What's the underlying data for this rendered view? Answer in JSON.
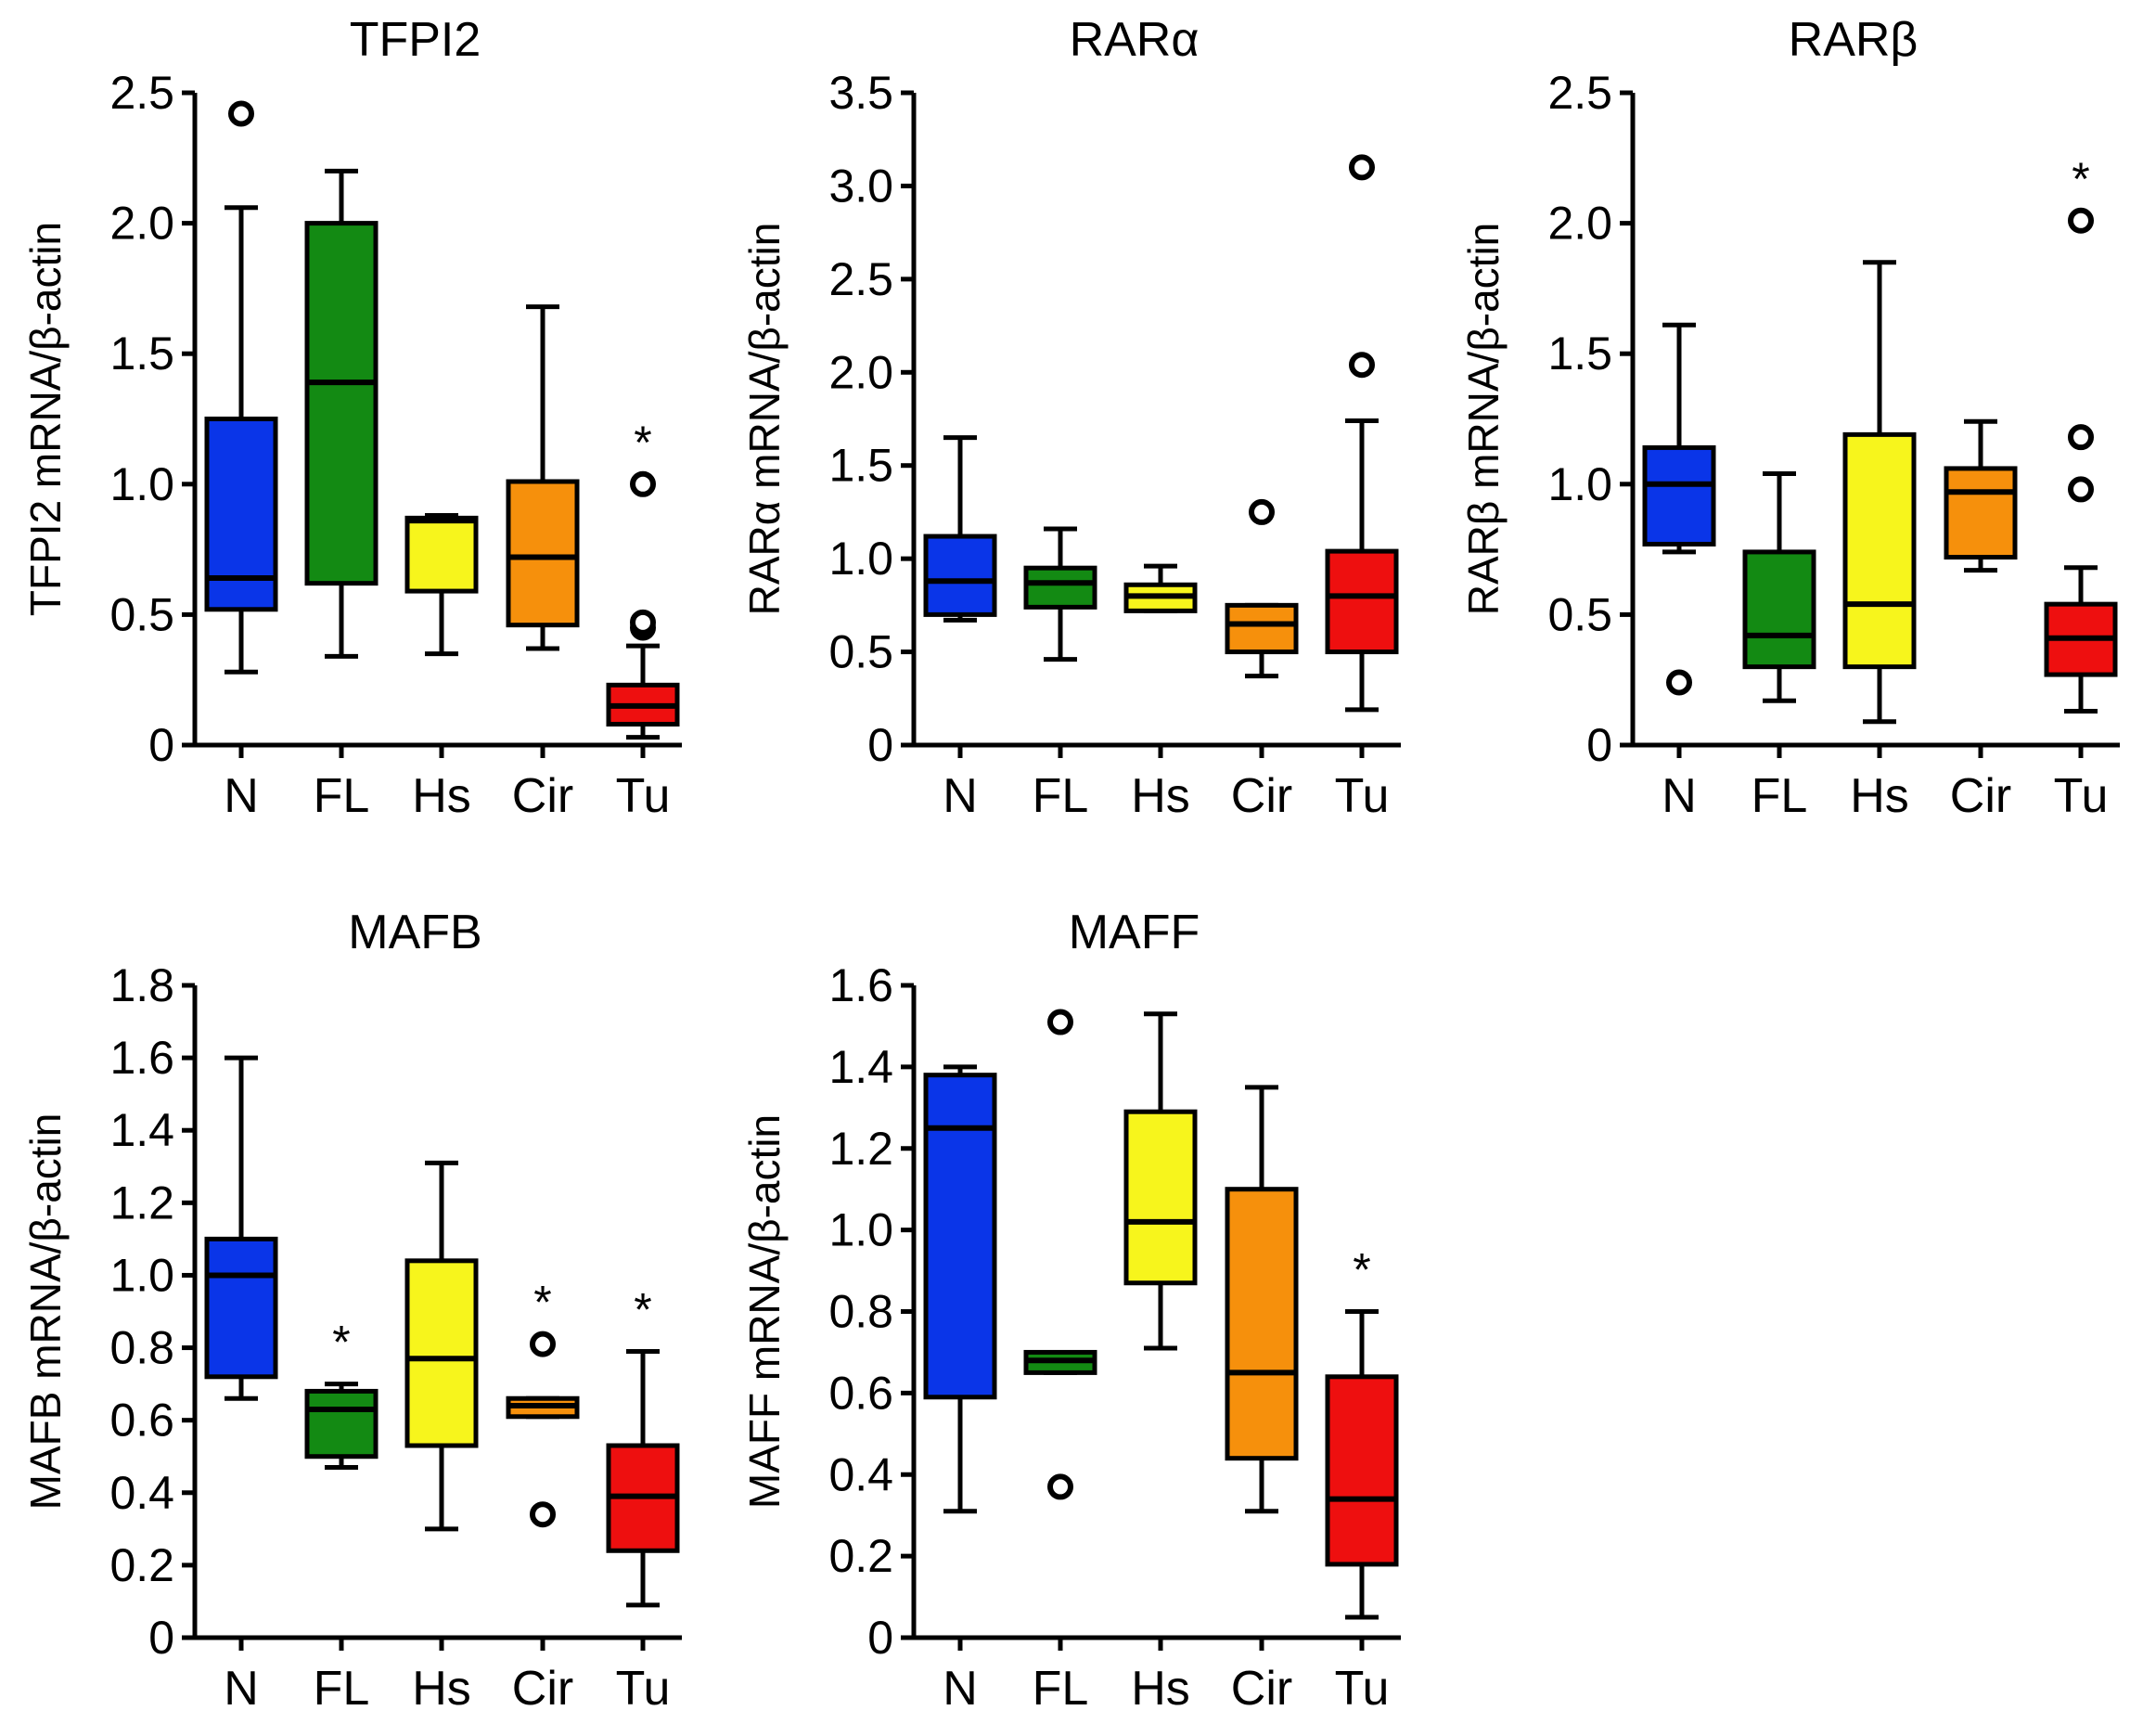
{
  "colors": {
    "N": "#0a35e8",
    "FL": "#138a13",
    "Hs": "#f7f51c",
    "Cir": "#f6900c",
    "Tu": "#ee0f0f",
    "stroke": "#000000"
  },
  "chart_data": [
    {
      "type": "box",
      "title": "TFPI2",
      "ylabel": "TFPI2 mRNA/β-actin",
      "ylim": [
        0,
        2.5
      ],
      "yticks": [
        "0",
        "0.5",
        "1.0",
        "1.5",
        "2.0",
        "2.5"
      ],
      "ytick_values": [
        0,
        0.5,
        1.0,
        1.5,
        2.0,
        2.5
      ],
      "categories": [
        "N",
        "FL",
        "Hs",
        "Cir",
        "Tu"
      ],
      "boxes": [
        {
          "category": "N",
          "whisker_low": 0.28,
          "q1": 0.52,
          "median": 0.64,
          "q3": 1.25,
          "whisker_high": 2.06,
          "outliers": [
            2.42
          ],
          "significant": false
        },
        {
          "category": "FL",
          "whisker_low": 0.34,
          "q1": 0.62,
          "median": 1.39,
          "q3": 2.0,
          "whisker_high": 2.2,
          "outliers": [],
          "significant": false
        },
        {
          "category": "Hs",
          "whisker_low": 0.35,
          "q1": 0.59,
          "median": 0.86,
          "q3": 0.87,
          "whisker_high": 0.88,
          "outliers": [],
          "significant": false
        },
        {
          "category": "Cir",
          "whisker_low": 0.37,
          "q1": 0.46,
          "median": 0.72,
          "q3": 1.01,
          "whisker_high": 1.68,
          "outliers": [],
          "significant": false
        },
        {
          "category": "Tu",
          "whisker_low": 0.03,
          "q1": 0.08,
          "median": 0.15,
          "q3": 0.23,
          "whisker_high": 0.38,
          "outliers": [
            0.45,
            0.47,
            1.0
          ],
          "significant": true
        }
      ]
    },
    {
      "type": "box",
      "title": "RARα",
      "ylabel": "RARα mRNA/β-actin",
      "ylim": [
        0,
        3.5
      ],
      "yticks": [
        "0",
        "0.5",
        "1.0",
        "1.5",
        "2.0",
        "2.5",
        "3.0",
        "3.5"
      ],
      "ytick_values": [
        0,
        0.5,
        1.0,
        1.5,
        2.0,
        2.5,
        3.0,
        3.5
      ],
      "categories": [
        "N",
        "FL",
        "Hs",
        "Cir",
        "Tu"
      ],
      "boxes": [
        {
          "category": "N",
          "whisker_low": 0.67,
          "q1": 0.7,
          "median": 0.88,
          "q3": 1.12,
          "whisker_high": 1.65,
          "outliers": [],
          "significant": false
        },
        {
          "category": "FL",
          "whisker_low": 0.46,
          "q1": 0.74,
          "median": 0.87,
          "q3": 0.95,
          "whisker_high": 1.16,
          "outliers": [],
          "significant": false
        },
        {
          "category": "Hs",
          "whisker_low": 0.72,
          "q1": 0.72,
          "median": 0.8,
          "q3": 0.86,
          "whisker_high": 0.96,
          "outliers": [],
          "significant": false
        },
        {
          "category": "Cir",
          "whisker_low": 0.37,
          "q1": 0.5,
          "median": 0.65,
          "q3": 0.75,
          "whisker_high": 0.75,
          "outliers": [
            1.25
          ],
          "significant": false
        },
        {
          "category": "Tu",
          "whisker_low": 0.19,
          "q1": 0.5,
          "median": 0.8,
          "q3": 1.04,
          "whisker_high": 1.74,
          "outliers": [
            2.04,
            3.1
          ],
          "significant": false
        }
      ]
    },
    {
      "type": "box",
      "title": "RARβ",
      "ylabel": "RARβ mRNA/β-actin",
      "ylim": [
        0,
        2.5
      ],
      "yticks": [
        "0",
        "0.5",
        "1.0",
        "1.5",
        "2.0",
        "2.5"
      ],
      "ytick_values": [
        0,
        0.5,
        1.0,
        1.5,
        2.0,
        2.5
      ],
      "categories": [
        "N",
        "FL",
        "Hs",
        "Cir",
        "Tu"
      ],
      "boxes": [
        {
          "category": "N",
          "whisker_low": 0.74,
          "q1": 0.77,
          "median": 1.0,
          "q3": 1.14,
          "whisker_high": 1.61,
          "outliers": [
            0.24
          ],
          "significant": false
        },
        {
          "category": "FL",
          "whisker_low": 0.17,
          "q1": 0.3,
          "median": 0.42,
          "q3": 0.74,
          "whisker_high": 1.04,
          "outliers": [],
          "significant": false
        },
        {
          "category": "Hs",
          "whisker_low": 0.09,
          "q1": 0.3,
          "median": 0.54,
          "q3": 1.19,
          "whisker_high": 1.85,
          "outliers": [],
          "significant": false
        },
        {
          "category": "Cir",
          "whisker_low": 0.67,
          "q1": 0.72,
          "median": 0.97,
          "q3": 1.06,
          "whisker_high": 1.24,
          "outliers": [],
          "significant": false
        },
        {
          "category": "Tu",
          "whisker_low": 0.13,
          "q1": 0.27,
          "median": 0.41,
          "q3": 0.54,
          "whisker_high": 0.68,
          "outliers": [
            0.98,
            1.18,
            2.01
          ],
          "significant": true
        }
      ]
    },
    {
      "type": "box",
      "title": "MAFB",
      "ylabel": "MAFB mRNA/β-actin",
      "ylim": [
        0,
        1.8
      ],
      "yticks": [
        "0",
        "0.2",
        "0.4",
        "0.6",
        "0.8",
        "1.0",
        "1.2",
        "1.4",
        "1.6",
        "1.8"
      ],
      "ytick_values": [
        0,
        0.2,
        0.4,
        0.6,
        0.8,
        1.0,
        1.2,
        1.4,
        1.6,
        1.8
      ],
      "categories": [
        "N",
        "FL",
        "Hs",
        "Cir",
        "Tu"
      ],
      "boxes": [
        {
          "category": "N",
          "whisker_low": 0.66,
          "q1": 0.72,
          "median": 1.0,
          "q3": 1.1,
          "whisker_high": 1.6,
          "outliers": [],
          "significant": false
        },
        {
          "category": "FL",
          "whisker_low": 0.47,
          "q1": 0.5,
          "median": 0.63,
          "q3": 0.68,
          "whisker_high": 0.7,
          "outliers": [],
          "significant": true
        },
        {
          "category": "Hs",
          "whisker_low": 0.3,
          "q1": 0.53,
          "median": 0.77,
          "q3": 1.04,
          "whisker_high": 1.31,
          "outliers": [],
          "significant": false
        },
        {
          "category": "Cir",
          "whisker_low": 0.61,
          "q1": 0.61,
          "median": 0.64,
          "q3": 0.66,
          "whisker_high": 0.66,
          "outliers": [
            0.34,
            0.81
          ],
          "significant": true
        },
        {
          "category": "Tu",
          "whisker_low": 0.09,
          "q1": 0.24,
          "median": 0.39,
          "q3": 0.53,
          "whisker_high": 0.79,
          "outliers": [],
          "significant": true
        }
      ]
    },
    {
      "type": "box",
      "title": "MAFF",
      "ylabel": "MAFF mRNA/β-actin",
      "ylim": [
        0,
        1.6
      ],
      "yticks": [
        "0",
        "0.2",
        "0.4",
        "0.6",
        "0.8",
        "1.0",
        "1.2",
        "1.4",
        "1.6"
      ],
      "ytick_values": [
        0,
        0.2,
        0.4,
        0.6,
        0.8,
        1.0,
        1.2,
        1.4,
        1.6
      ],
      "categories": [
        "N",
        "FL",
        "Hs",
        "Cir",
        "Tu"
      ],
      "boxes": [
        {
          "category": "N",
          "whisker_low": 0.31,
          "q1": 0.59,
          "median": 1.25,
          "q3": 1.38,
          "whisker_high": 1.4,
          "outliers": [],
          "significant": false
        },
        {
          "category": "FL",
          "whisker_low": 0.65,
          "q1": 0.65,
          "median": 0.68,
          "q3": 0.7,
          "whisker_high": 0.7,
          "outliers": [
            0.37,
            1.51
          ],
          "significant": false
        },
        {
          "category": "Hs",
          "whisker_low": 0.71,
          "q1": 0.87,
          "median": 1.02,
          "q3": 1.29,
          "whisker_high": 1.53,
          "outliers": [],
          "significant": false
        },
        {
          "category": "Cir",
          "whisker_low": 0.31,
          "q1": 0.44,
          "median": 0.65,
          "q3": 1.1,
          "whisker_high": 1.35,
          "outliers": [],
          "significant": false
        },
        {
          "category": "Tu",
          "whisker_low": 0.05,
          "q1": 0.18,
          "median": 0.34,
          "q3": 0.64,
          "whisker_high": 0.8,
          "outliers": [],
          "significant": true
        }
      ]
    }
  ]
}
